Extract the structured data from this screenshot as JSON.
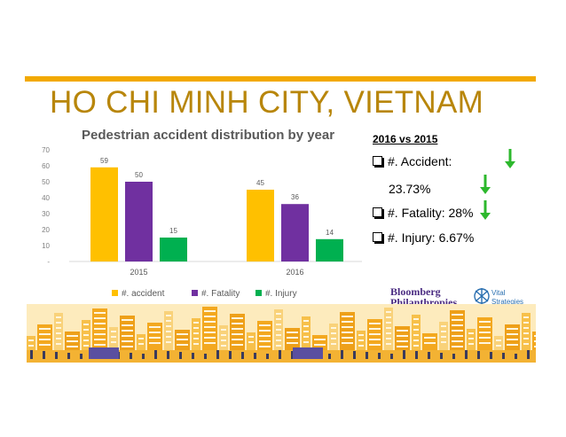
{
  "slide": {
    "title": "HO CHI MINH CITY, VIETNAM",
    "accent_color": "#f2a900",
    "title_color": "#b8860b"
  },
  "chart_data": {
    "type": "bar",
    "title": "Pedestrian accident distribution by year",
    "categories": [
      "2015",
      "2016"
    ],
    "series": [
      {
        "name": "#. accident",
        "color": "#ffc000",
        "values": [
          59,
          45
        ]
      },
      {
        "name": "#. Fatality",
        "color": "#7030a0",
        "values": [
          50,
          36
        ]
      },
      {
        "name": "#. Injury",
        "color": "#00b050",
        "values": [
          15,
          14
        ]
      }
    ],
    "ylim": [
      0,
      70
    ],
    "yticks": [
      "-",
      "10",
      "20",
      "30",
      "40",
      "50",
      "60",
      "70"
    ],
    "grid": false,
    "legend": "bottom"
  },
  "comparison": {
    "heading": "2016 vs 2015",
    "items": [
      {
        "label": "#. Accident:",
        "value": "23.73%",
        "icon": "green-down-arrow"
      },
      {
        "label": "#. Fatality: 28%",
        "icon": "green-down-arrow"
      },
      {
        "label": "#. Injury: 6.67%",
        "icon": "green-down-arrow"
      }
    ],
    "arrow_color": "#2db82d"
  },
  "logos": {
    "bloomberg_line1": "Bloomberg",
    "bloomberg_line2": "Philanthropies",
    "vital_line1": "Vital",
    "vital_line2": "Strategies"
  }
}
